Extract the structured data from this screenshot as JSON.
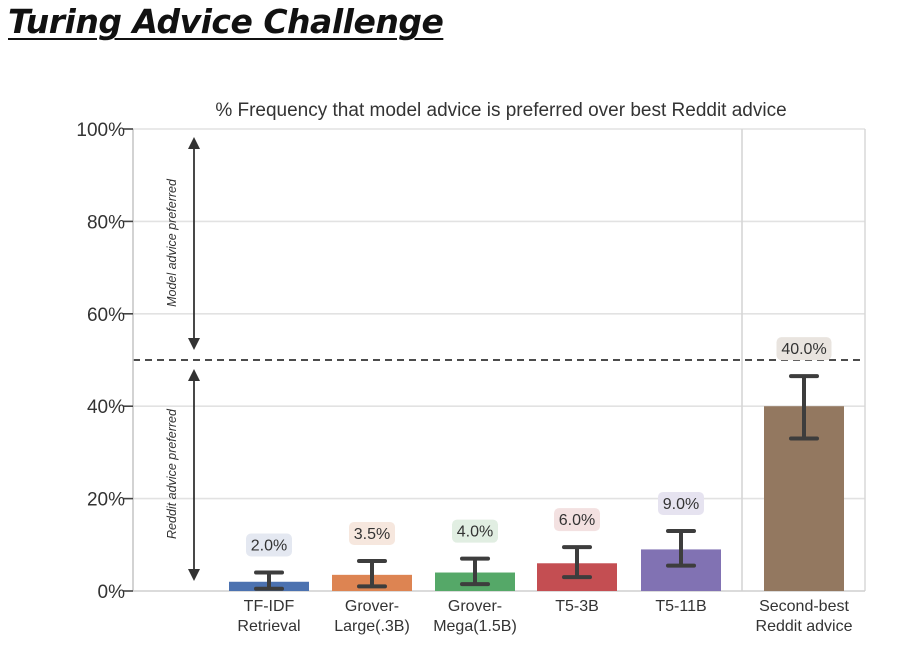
{
  "slide": {
    "title": "Turing Advice Challenge"
  },
  "chart_data": {
    "type": "bar",
    "title": "% Frequency that model advice is preferred over best Reddit advice",
    "xlabel": "",
    "ylabel": "",
    "ylim": [
      0,
      100
    ],
    "y_ticks": [
      "0%",
      "20%",
      "40%",
      "60%",
      "80%",
      "100%"
    ],
    "y_tick_values": [
      0,
      20,
      40,
      60,
      80,
      100
    ],
    "grid": true,
    "categories": [
      [
        "TF-IDF",
        "Retrieval"
      ],
      [
        "Grover-",
        "Large(.3B)"
      ],
      [
        "Grover-",
        "Mega(1.5B)"
      ],
      [
        "T5-3B"
      ],
      [
        "T5-11B"
      ],
      [
        "Second-best",
        "Reddit advice"
      ]
    ],
    "values": [
      2.0,
      3.5,
      4.0,
      6.0,
      9.0,
      40.0
    ],
    "value_labels": [
      "2.0%",
      "3.5%",
      "4.0%",
      "6.0%",
      "9.0%",
      "40.0%"
    ],
    "error_low": [
      0.5,
      1.0,
      1.5,
      3.0,
      5.5,
      33.0
    ],
    "error_high": [
      4.0,
      6.5,
      7.0,
      9.5,
      13.0,
      46.5
    ],
    "colors": [
      "#4c72b0",
      "#dd8452",
      "#55a868",
      "#c44e52",
      "#8172b3",
      "#937860"
    ],
    "label_bg_colors": [
      "#e4e8f1",
      "#f6e7de",
      "#e1eee2",
      "#f3e1e1",
      "#e6e3f0",
      "#e9e4df"
    ],
    "reference_line": 50,
    "annotations": {
      "upper": "Model advice preferred",
      "lower": "Reddit advice preferred"
    }
  }
}
